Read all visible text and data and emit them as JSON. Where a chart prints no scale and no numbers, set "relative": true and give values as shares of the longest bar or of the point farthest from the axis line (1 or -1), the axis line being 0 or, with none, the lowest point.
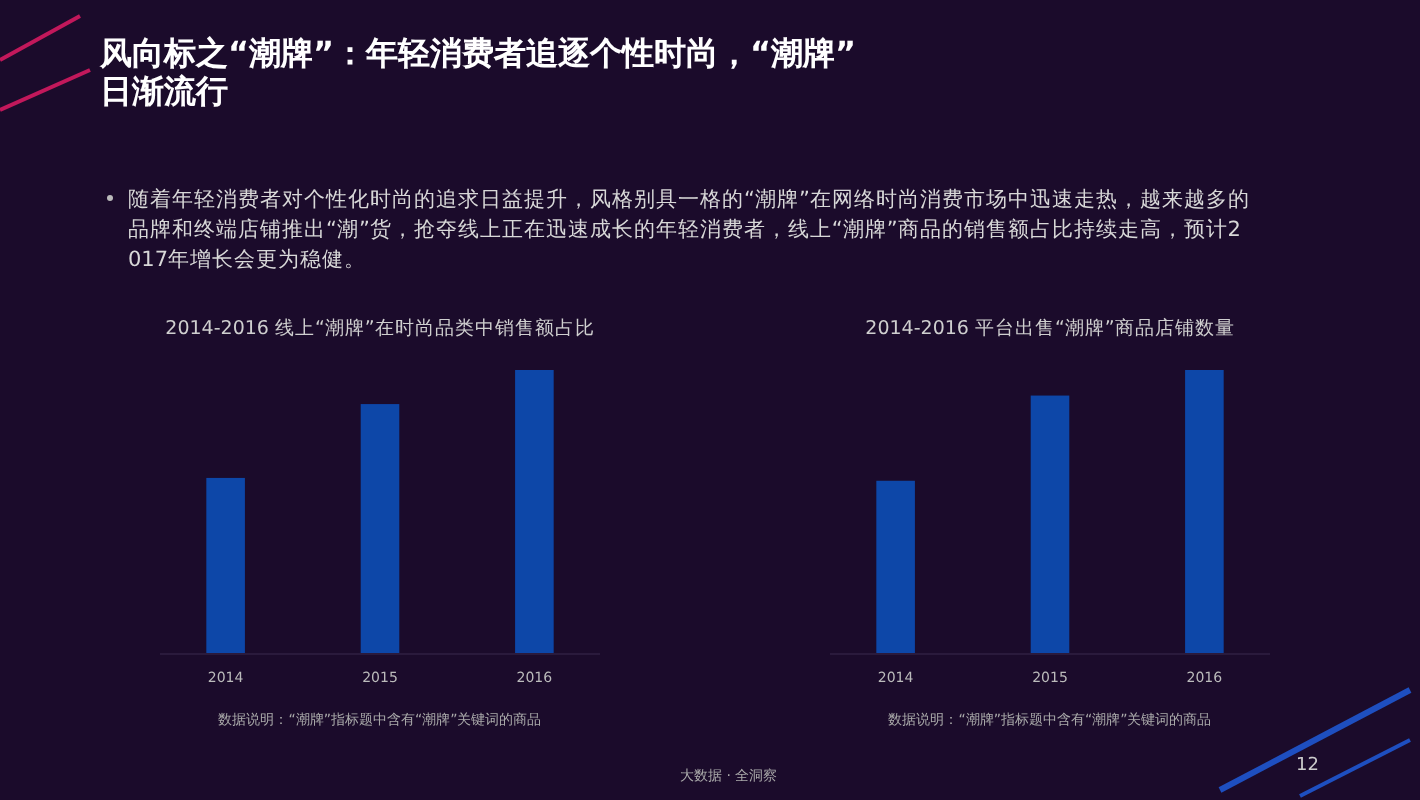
{
  "chart_data": [
    {
      "type": "other",
      "title": "风向标之“潮牌”：年轻消费者追逐个性时尚，“潮牌”日渐流行",
      "annotations": [
        "随着年轻消费者对个性化时尚的追求日益提升，风格别具一格的“潮牌”在网络时尚消费市场中迅速走热，越来越多的品牌和终端店铺推出“潮”货，抢夺线上正在迅速成长的年轻消费者，线上“潮牌”商品的销售额占比持续走高，预计2017年增长会更为稳健。",
        "大数据 · 全洞察",
        "12"
      ]
    },
    {
      "type": "bar",
      "title": "2014-2016 线上“潮牌”在时尚品类中销售额占比",
      "categories": [
        "2014",
        "2015",
        "2016"
      ],
      "values": [
        0.62,
        0.88,
        1
      ],
      "relative": true,
      "color": "#0d47a8",
      "annotations": [
        "数据说明：“潮牌”指标题中含有“潮牌”关键词的商品"
      ]
    },
    {
      "type": "bar",
      "title": "2014-2016 平台出售“潮牌”商品店铺数量",
      "categories": [
        "2014",
        "2015",
        "2016"
      ],
      "values": [
        0.61,
        0.91,
        1
      ],
      "relative": true,
      "color": "#0d47a8",
      "annotations": [
        "数据说明：“潮牌”指标题中含有“潮牌”关键词的商品"
      ]
    }
  ]
}
